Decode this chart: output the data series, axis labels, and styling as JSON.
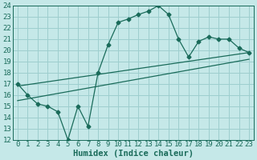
{
  "xlabel": "Humidex (Indice chaleur)",
  "ylabel": "",
  "xlim": [
    -0.5,
    23.5
  ],
  "ylim": [
    12,
    24
  ],
  "xticks": [
    0,
    1,
    2,
    3,
    4,
    5,
    6,
    7,
    8,
    9,
    10,
    11,
    12,
    13,
    14,
    15,
    16,
    17,
    18,
    19,
    20,
    21,
    22,
    23
  ],
  "yticks": [
    12,
    13,
    14,
    15,
    16,
    17,
    18,
    19,
    20,
    21,
    22,
    23,
    24
  ],
  "bg_color": "#c5e8e8",
  "grid_color": "#9dcece",
  "line_color": "#1a6b5a",
  "curve1_x": [
    0,
    1,
    2,
    3,
    4,
    5,
    6,
    7,
    8,
    9,
    10,
    11,
    12,
    13,
    14,
    15,
    16,
    17,
    18,
    19,
    20,
    21,
    22,
    23
  ],
  "curve1_y": [
    17.0,
    16.0,
    15.2,
    15.0,
    14.5,
    12.0,
    15.0,
    13.2,
    18.0,
    20.5,
    22.5,
    22.8,
    23.2,
    23.5,
    24.0,
    23.2,
    21.0,
    19.4,
    20.8,
    21.2,
    21.0,
    21.0,
    20.2,
    19.8
  ],
  "curve2_x": [
    0,
    23
  ],
  "curve2_y": [
    16.8,
    19.8
  ],
  "curve3_x": [
    0,
    23
  ],
  "curve3_y": [
    15.5,
    19.2
  ],
  "tick_fontsize": 6.5,
  "xlabel_fontsize": 7.5
}
